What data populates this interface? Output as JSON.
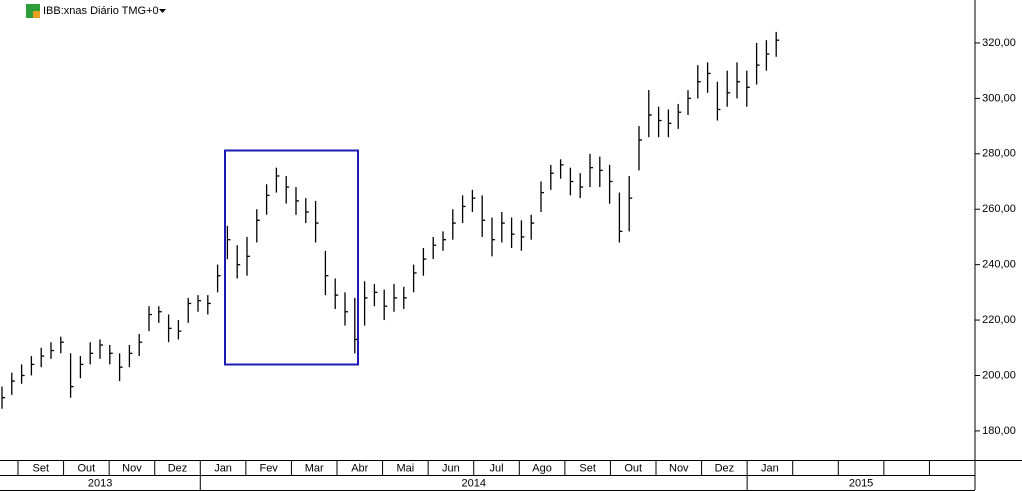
{
  "chart_data": {
    "type": "ohlc",
    "title": "IBB:xnas Diário TMG+0",
    "ylim": [
      169.5,
      335.5
    ],
    "yticks": [
      {
        "value": 180,
        "label": "180,00"
      },
      {
        "value": 200,
        "label": "200,00"
      },
      {
        "value": 220,
        "label": "220,00"
      },
      {
        "value": 240,
        "label": "240,00"
      },
      {
        "value": 260,
        "label": "260,00"
      },
      {
        "value": 280,
        "label": "280,00"
      },
      {
        "value": 300,
        "label": "300,00"
      },
      {
        "value": 320,
        "label": "320,00"
      }
    ],
    "months": [
      null,
      "Set",
      "Out",
      "Nov",
      "Dez",
      "Jan",
      "Fev",
      "Mar",
      "Abr",
      "Mai",
      "Jun",
      "Jul",
      "Ago",
      "Set",
      "Out",
      "Nov",
      "Dez",
      "Jan",
      null,
      null,
      null,
      null
    ],
    "years": [
      "2013",
      "2014",
      "2015"
    ],
    "color": "#000000",
    "series": [
      {
        "name": "IBB",
        "close": [
          192,
          198,
          200,
          204,
          207,
          209,
          212,
          196,
          204,
          208,
          211,
          208,
          203,
          208,
          212,
          222,
          223,
          217,
          216,
          226,
          227,
          226,
          236,
          249,
          240,
          243,
          256,
          265,
          272,
          268,
          263,
          259,
          255,
          236,
          229,
          223,
          213,
          228,
          230,
          225,
          228,
          228,
          237,
          242,
          247,
          249,
          255,
          261,
          264,
          256,
          249,
          255,
          251,
          250,
          255,
          266,
          273,
          276,
          270,
          268,
          275,
          274,
          270,
          252,
          264,
          285,
          294,
          292,
          291,
          295,
          300,
          306,
          309,
          296,
          302,
          306,
          304,
          312,
          316,
          321
        ],
        "high": [
          196,
          201,
          204,
          207,
          210,
          212,
          214,
          208,
          207,
          212,
          213,
          211,
          208,
          211,
          215,
          225,
          225,
          222,
          220,
          228,
          229,
          229,
          240,
          254,
          247,
          250,
          260,
          269,
          275,
          272,
          268,
          264,
          263,
          245,
          235,
          230,
          228,
          234,
          233,
          231,
          233,
          232,
          240,
          246,
          250,
          252,
          260,
          265,
          267,
          265,
          257,
          259,
          257,
          256,
          258,
          270,
          276,
          278,
          275,
          273,
          280,
          279,
          276,
          266,
          272,
          290,
          303,
          297,
          296,
          298,
          303,
          312,
          313,
          306,
          310,
          313,
          310,
          320,
          321,
          324
        ],
        "low": [
          188,
          193,
          197,
          200,
          203,
          206,
          208,
          192,
          199,
          204,
          206,
          204,
          198,
          203,
          207,
          216,
          219,
          212,
          213,
          219,
          223,
          222,
          230,
          242,
          235,
          236,
          248,
          258,
          266,
          262,
          258,
          255,
          248,
          229,
          224,
          218,
          208,
          218,
          225,
          220,
          223,
          224,
          230,
          236,
          242,
          245,
          249,
          255,
          259,
          250,
          243,
          248,
          246,
          245,
          249,
          259,
          267,
          271,
          265,
          264,
          268,
          268,
          262,
          248,
          252,
          274,
          286,
          286,
          286,
          289,
          294,
          300,
          302,
          292,
          297,
          300,
          297,
          305,
          310,
          315
        ]
      }
    ]
  }
}
